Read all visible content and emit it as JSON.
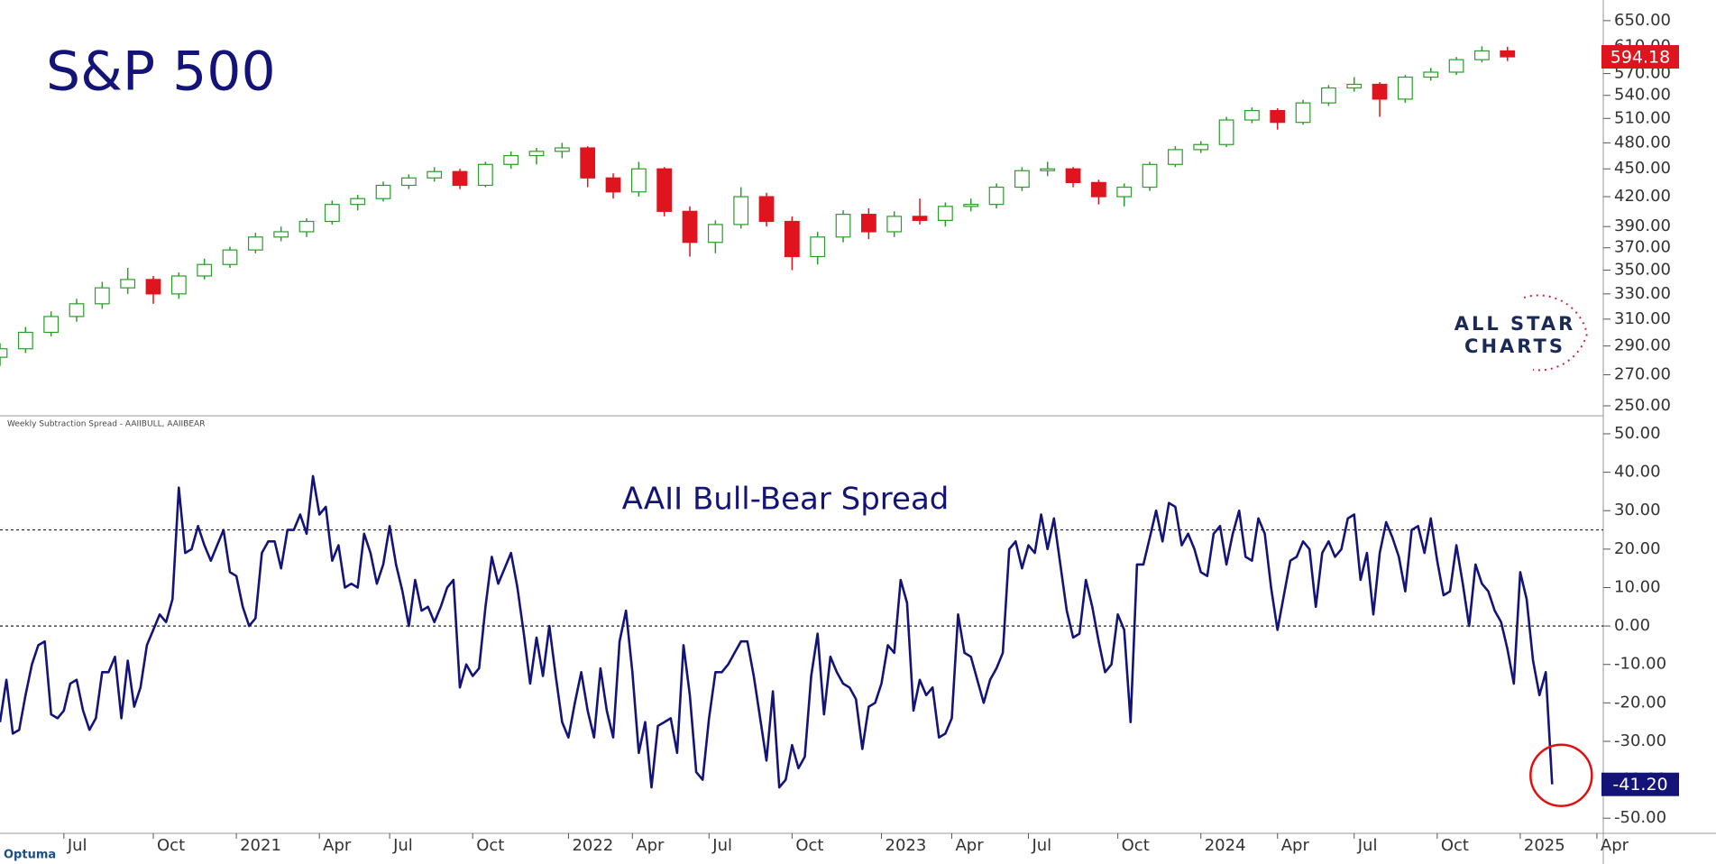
{
  "chart_data": [
    {
      "type": "candlestick",
      "title": "S&P 500",
      "log": true,
      "up_color": "#2a9d2a",
      "down_color": "#e0141e",
      "xlim": [
        0,
        251
      ],
      "ylim": [
        245,
        675
      ],
      "x": [
        0,
        4,
        8,
        12,
        16,
        20,
        24,
        28,
        32,
        36,
        40,
        44,
        48,
        52,
        56,
        60,
        64,
        68,
        72,
        76,
        80,
        84,
        88,
        92,
        96,
        100,
        104,
        108,
        112,
        116,
        120,
        124,
        128,
        132,
        136,
        140,
        144,
        148,
        152,
        156,
        160,
        164,
        168,
        172,
        176,
        180,
        184,
        188,
        192,
        196,
        200,
        204,
        208,
        212,
        216,
        220,
        224,
        228,
        232,
        236
      ],
      "open": [
        282,
        288,
        300,
        312,
        322,
        335,
        342,
        330,
        345,
        355,
        368,
        380,
        385,
        395,
        412,
        418,
        432,
        440,
        447,
        432,
        455,
        465,
        470,
        474,
        440,
        425,
        450,
        405,
        375,
        392,
        420,
        395,
        362,
        380,
        402,
        385,
        400,
        396,
        410,
        412,
        430,
        448,
        450,
        435,
        420,
        430,
        455,
        472,
        478,
        508,
        520,
        505,
        530,
        550,
        555,
        535,
        565,
        572,
        590,
        603
      ],
      "high": [
        292,
        304,
        316,
        326,
        340,
        352,
        345,
        348,
        360,
        371,
        384,
        390,
        398,
        416,
        422,
        436,
        444,
        452,
        450,
        458,
        470,
        474,
        480,
        476,
        445,
        458,
        452,
        410,
        396,
        430,
        424,
        400,
        385,
        406,
        408,
        405,
        418,
        414,
        418,
        434,
        452,
        458,
        452,
        438,
        434,
        458,
        476,
        482,
        512,
        524,
        523,
        534,
        554,
        565,
        558,
        568,
        578,
        594,
        610,
        609
      ],
      "low": [
        276,
        285,
        297,
        308,
        318,
        330,
        322,
        326,
        342,
        352,
        365,
        376,
        380,
        392,
        406,
        415,
        428,
        436,
        428,
        430,
        450,
        455,
        462,
        430,
        418,
        420,
        400,
        362,
        365,
        388,
        390,
        350,
        355,
        375,
        378,
        380,
        392,
        390,
        405,
        408,
        426,
        442,
        430,
        412,
        410,
        426,
        452,
        468,
        475,
        504,
        496,
        502,
        526,
        545,
        512,
        530,
        560,
        568,
        586,
        588
      ],
      "close": [
        288,
        300,
        312,
        322,
        335,
        342,
        330,
        345,
        355,
        368,
        380,
        385,
        395,
        412,
        418,
        432,
        440,
        447,
        432,
        455,
        465,
        470,
        474,
        440,
        425,
        450,
        405,
        375,
        392,
        420,
        395,
        362,
        380,
        402,
        385,
        400,
        396,
        410,
        412,
        430,
        448,
        450,
        435,
        420,
        430,
        455,
        472,
        478,
        508,
        520,
        505,
        530,
        550,
        555,
        535,
        565,
        572,
        590,
        603,
        594.18
      ],
      "last_value_label": "594.18",
      "yticks": [
        {
          "value": 250,
          "label": "250.00"
        },
        {
          "value": 270,
          "label": "270.00"
        },
        {
          "value": 290,
          "label": "290.00"
        },
        {
          "value": 310,
          "label": "310.00"
        },
        {
          "value": 330,
          "label": "330.00"
        },
        {
          "value": 350,
          "label": "350.00"
        },
        {
          "value": 370,
          "label": "370.00"
        },
        {
          "value": 390,
          "label": "390.00"
        },
        {
          "value": 420,
          "label": "420.00"
        },
        {
          "value": 450,
          "label": "450.00"
        },
        {
          "value": 480,
          "label": "480.00"
        },
        {
          "value": 510,
          "label": "510.00"
        },
        {
          "value": 540,
          "label": "540.00"
        },
        {
          "value": 570,
          "label": "570.00"
        },
        {
          "value": 610,
          "label": "610.00"
        },
        {
          "value": 650,
          "label": "650.00"
        }
      ],
      "logo": [
        "ALL STAR",
        "CHARTS"
      ]
    },
    {
      "type": "line",
      "panel_label": "Weekly Subtraction Spread - AAIIBULL, AAIIBEAR",
      "title": "AAII Bull-Bear Spread",
      "color": "#141478",
      "xlim": [
        0,
        251
      ],
      "ylim": [
        -53,
        50
      ],
      "reference_lines": [
        25,
        0
      ],
      "values": [
        -25,
        -14,
        -28,
        -27,
        -18,
        -10,
        -5,
        -4,
        -23,
        -24,
        -22,
        -15,
        -14,
        -22,
        -27,
        -24,
        -12,
        -12,
        -8,
        -24,
        -9,
        -21,
        -16,
        -5,
        -1,
        3,
        1,
        7,
        36,
        19,
        20,
        26,
        21,
        17,
        21,
        25,
        14,
        13,
        5,
        0,
        2,
        19,
        22,
        22,
        15,
        25,
        25,
        29,
        24,
        39,
        29,
        31,
        17,
        21,
        10,
        11,
        10,
        24,
        19,
        11,
        16,
        26,
        16,
        9,
        0,
        12,
        4,
        5,
        1,
        5,
        10,
        12,
        -16,
        -10,
        -13,
        -11,
        5,
        18,
        11,
        15,
        19,
        10,
        -2,
        -15,
        -3,
        -13,
        0,
        -13,
        -25,
        -29,
        -20,
        -12,
        -22,
        -29,
        -11,
        -22,
        -29,
        -4,
        4,
        -12,
        -33,
        -25,
        -42,
        -26,
        -25,
        -24,
        -33,
        -5,
        -18,
        -38,
        -40,
        -24,
        -12,
        -12,
        -10,
        -7,
        -4,
        -4,
        -13,
        -24,
        -35,
        -17,
        -42,
        -40,
        -31,
        -37,
        -34,
        -13,
        -2,
        -23,
        -8,
        -12,
        -15,
        -16,
        -19,
        -32,
        -21,
        -20,
        -15,
        -5,
        -7,
        12,
        6,
        -22,
        -14,
        -18,
        -16,
        -29,
        -28,
        -24,
        3,
        -7,
        -8,
        -14,
        -20,
        -14,
        -11,
        -7,
        20,
        22,
        15,
        21,
        19,
        29,
        20,
        28,
        16,
        4,
        -3,
        -2,
        12,
        5,
        -4,
        -12,
        -10,
        3,
        -1,
        -25,
        16,
        16,
        23,
        30,
        22,
        32,
        31,
        21,
        24,
        20,
        14,
        13,
        24,
        26,
        16,
        24,
        30,
        18,
        17,
        28,
        24,
        10,
        -1,
        8,
        17,
        18,
        22,
        20,
        5,
        19,
        22,
        18,
        20,
        28,
        29,
        12,
        19,
        3,
        19,
        27,
        23,
        18,
        9,
        25,
        26,
        19,
        28,
        17,
        8,
        9,
        21,
        11,
        0,
        16,
        11,
        9,
        4,
        1,
        -6,
        -15,
        14,
        7,
        -9,
        -18,
        -12,
        -41.2
      ],
      "last_value_label": "-41.20",
      "yticks": [
        {
          "value": -50,
          "label": "-50.00"
        },
        {
          "value": -40,
          "label": "-40.00"
        },
        {
          "value": -30,
          "label": "-30.00"
        },
        {
          "value": -20,
          "label": "-20.00"
        },
        {
          "value": -10,
          "label": "-10.00"
        },
        {
          "value": 0,
          "label": "0.00"
        },
        {
          "value": 10,
          "label": "10.00"
        },
        {
          "value": 20,
          "label": "20.00"
        },
        {
          "value": 30,
          "label": "30.00"
        },
        {
          "value": 40,
          "label": "40.00"
        },
        {
          "value": 50,
          "label": "50.00"
        }
      ],
      "xticks": [
        {
          "value": 10,
          "label": "Jul"
        },
        {
          "value": 24,
          "label": "Oct"
        },
        {
          "value": 37,
          "label": "2021"
        },
        {
          "value": 50,
          "label": "Apr"
        },
        {
          "value": 61,
          "label": "Jul"
        },
        {
          "value": 74,
          "label": "Oct"
        },
        {
          "value": 89,
          "label": "2022"
        },
        {
          "value": 99,
          "label": "Apr"
        },
        {
          "value": 111,
          "label": "Jul"
        },
        {
          "value": 124,
          "label": "Oct"
        },
        {
          "value": 138,
          "label": "2023"
        },
        {
          "value": 149,
          "label": "Apr"
        },
        {
          "value": 161,
          "label": "Jul"
        },
        {
          "value": 175,
          "label": "Oct"
        },
        {
          "value": 188,
          "label": "2024"
        },
        {
          "value": 200,
          "label": "Apr"
        },
        {
          "value": 212,
          "label": "Jul"
        },
        {
          "value": 225,
          "label": "Oct"
        },
        {
          "value": 238,
          "label": "2025"
        },
        {
          "value": 250,
          "label": "Apr"
        }
      ],
      "brand": "Optuma"
    }
  ]
}
